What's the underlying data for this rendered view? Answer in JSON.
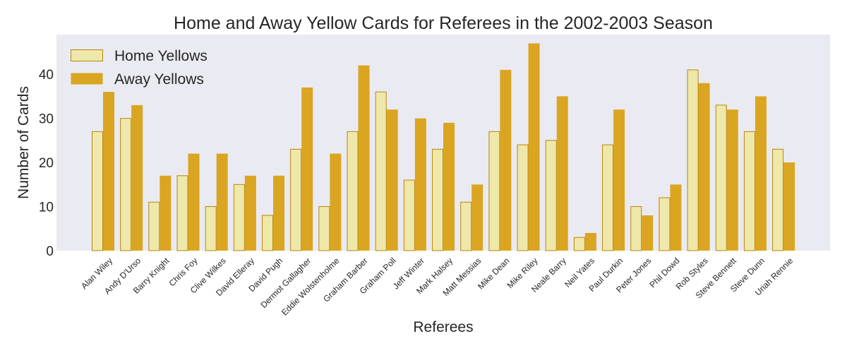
{
  "chart_data": {
    "type": "bar",
    "title": "Home and Away Yellow Cards for Referees in the 2002-2003 Season",
    "xlabel": "Referees",
    "ylabel": "Number of Cards",
    "ylim": [
      0,
      49
    ],
    "yticks": [
      0,
      10,
      20,
      30,
      40
    ],
    "grid": false,
    "legend_position": "top-left",
    "categories": [
      "Alan Wiley",
      "Andy D'Urso",
      "Barry Knight",
      "Chris Foy",
      "Clive Wilkes",
      "David Elleray",
      "David Pugh",
      "Dermot Gallagher",
      "Eddie Wolstenholme",
      "Graham Barber",
      "Graham Poll",
      "Jeff Winter",
      "Mark Halsey",
      "Matt Messias",
      "Mike Dean",
      "Mike Riley",
      "Neale Barry",
      "Neil Yates",
      "Paul Durkin",
      "Peter Jones",
      "Phil Dowd",
      "Rob Styles",
      "Steve Bennett",
      "Steve Dunn",
      "Uriah Rennie"
    ],
    "series": [
      {
        "name": "Home Yellows",
        "color": "#eee8aa",
        "edge_color": "#b8860b",
        "values": [
          27,
          30,
          11,
          17,
          10,
          15,
          8,
          23,
          10,
          27,
          36,
          16,
          23,
          11,
          27,
          24,
          25,
          3,
          24,
          10,
          12,
          41,
          33,
          27,
          23
        ]
      },
      {
        "name": "Away Yellows",
        "color": "#daa520",
        "edge_color": "#daa520",
        "values": [
          36,
          33,
          17,
          22,
          22,
          17,
          17,
          37,
          22,
          42,
          32,
          30,
          29,
          15,
          41,
          47,
          35,
          4,
          32,
          8,
          15,
          38,
          32,
          35,
          20
        ]
      }
    ],
    "plot_background": "#eaeaf2"
  }
}
